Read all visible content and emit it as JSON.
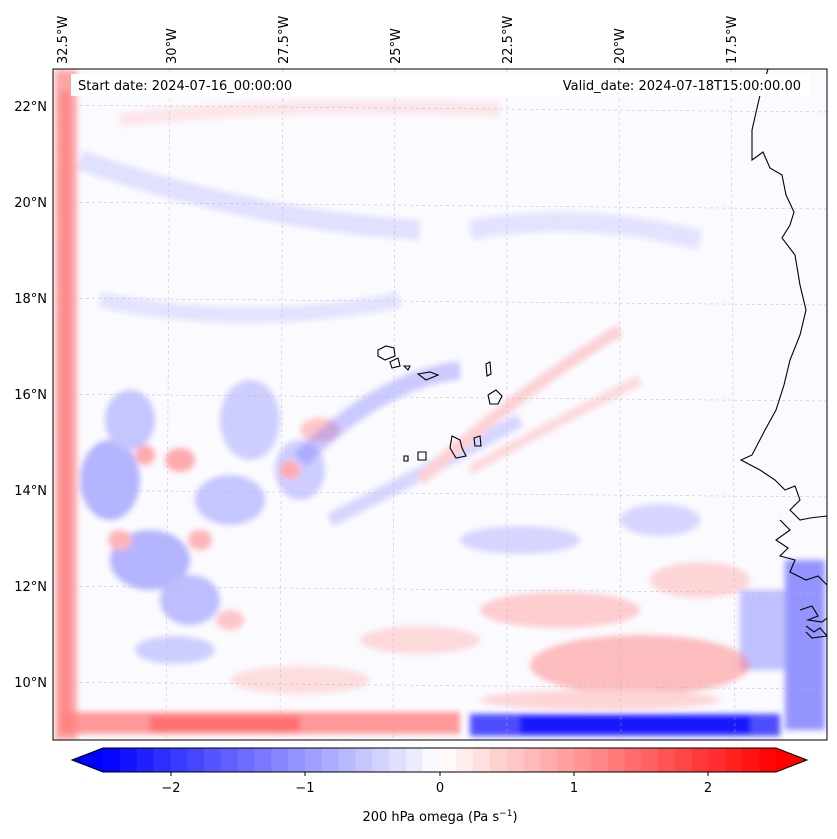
{
  "header": {
    "start_date": "Start date: 2024-07-16_00:00:00",
    "valid_date": "Valid_date: 2024-07-18T15:00:00.00"
  },
  "map": {
    "lon_labels": [
      "32.5°W",
      "30°W",
      "27.5°W",
      "25°W",
      "22.5°W",
      "20°W",
      "17.5°W"
    ],
    "lat_labels": [
      "22°N",
      "20°N",
      "18°N",
      "16°N",
      "14°N",
      "12°N",
      "10°N"
    ],
    "background_color": "#ffffff",
    "gridline_style": "dashed",
    "coastline_color": "#000000"
  },
  "colorbar": {
    "label_text": "200 hPa omega (Pa s",
    "label_exp": "−1",
    "label_close": ")",
    "ticks": [
      "−2",
      "−1",
      "0",
      "1",
      "2"
    ],
    "tick_values": [
      -2,
      -1,
      0,
      1,
      2
    ],
    "range": [
      -2.75,
      2.75
    ],
    "extend": "both",
    "colormap": "bwr",
    "low_color": "#0000ff",
    "mid_color": "#ffffff",
    "high_color": "#ff0000"
  }
}
